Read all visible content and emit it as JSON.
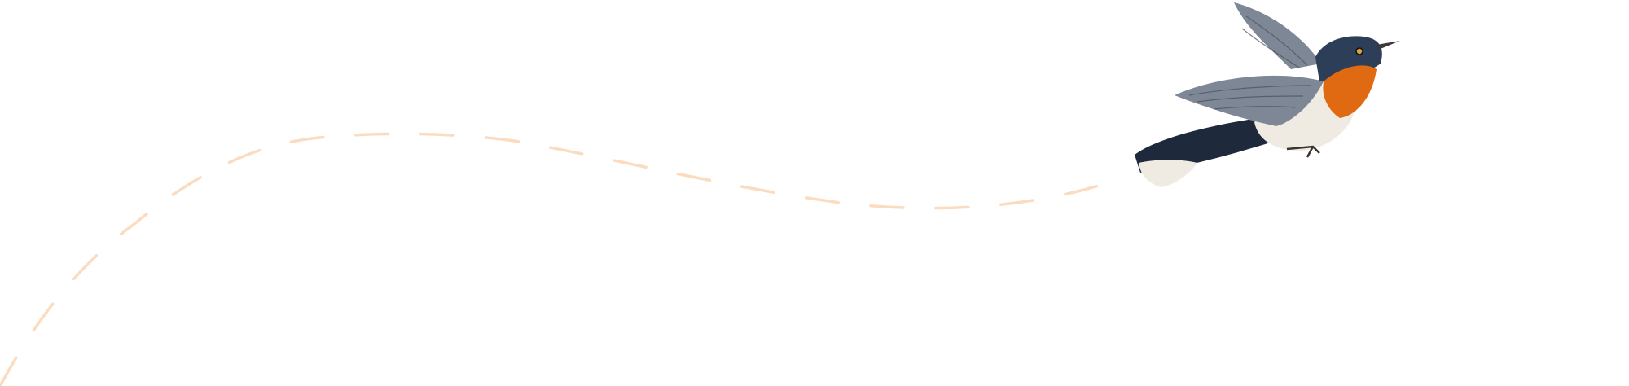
{
  "illustration": {
    "subject": "bird-in-flight",
    "path_style": "dashed",
    "colors": {
      "background": "#ffffff",
      "flight_path": "#fbdcc0",
      "bird_head": "#2c3e58",
      "bird_throat": "#e06a12",
      "bird_wing": "#7d8796",
      "bird_belly": "#efebe2",
      "bird_tail": "#1e2a3c"
    }
  }
}
